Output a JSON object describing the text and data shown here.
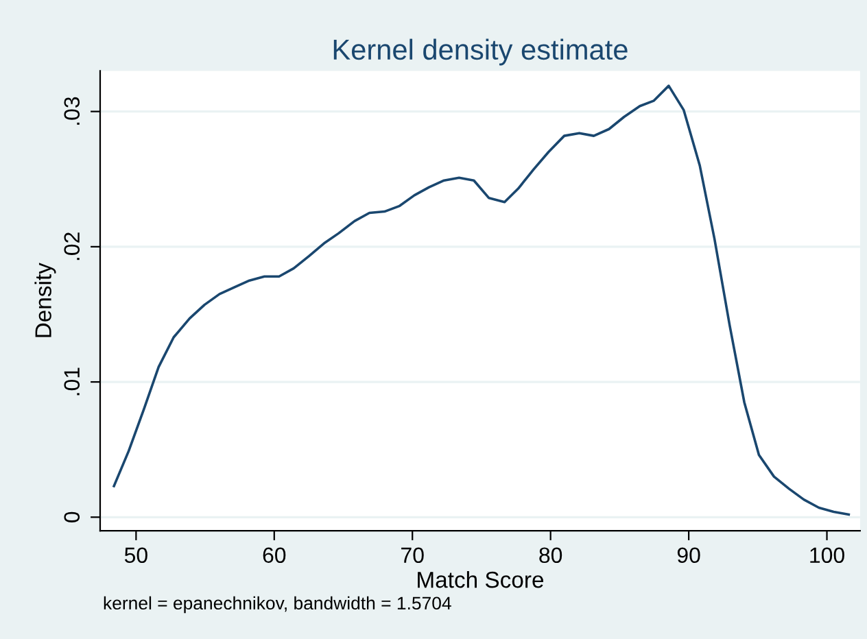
{
  "chart_data": {
    "type": "line",
    "title": "Kernel density estimate",
    "xlabel": "Match Score",
    "ylabel": "Density",
    "annotations": [
      "kernel = epanechnikov, bandwidth = 1.5704"
    ],
    "xlim": [
      47.4,
      102.4
    ],
    "ylim": [
      -0.001,
      0.033
    ],
    "xticks": [
      50,
      60,
      70,
      80,
      90,
      100
    ],
    "yticks": [
      {
        "value": 0,
        "label": "0"
      },
      {
        "value": 0.01,
        "label": ".01"
      },
      {
        "value": 0.02,
        "label": ".02"
      },
      {
        "value": 0.03,
        "label": ".03"
      }
    ],
    "grid": "y",
    "marker": "none",
    "line_style": "solid",
    "series": [
      {
        "color": "#1a476f",
        "x": [
          48.4,
          49.47,
          50.57,
          51.63,
          52.72,
          53.88,
          54.95,
          56.04,
          57.1,
          58.2,
          59.29,
          60.35,
          61.41,
          62.51,
          63.67,
          64.67,
          65.82,
          66.89,
          67.98,
          69.04,
          70.14,
          71.2,
          72.29,
          73.38,
          74.45,
          75.54,
          76.67,
          77.66,
          78.76,
          79.85,
          80.99,
          82.08,
          83.13,
          84.23,
          85.32,
          86.46,
          87.48,
          88.55,
          89.64,
          90.8,
          91.86,
          92.96,
          94.02,
          95.08,
          96.17,
          97.26,
          98.33,
          99.42,
          100.49,
          101.58
        ],
        "values": [
          0.0023,
          0.0049,
          0.008,
          0.0111,
          0.0133,
          0.0147,
          0.0157,
          0.0165,
          0.017,
          0.0175,
          0.0178,
          0.0178,
          0.0184,
          0.0193,
          0.0203,
          0.021,
          0.0219,
          0.0225,
          0.0226,
          0.023,
          0.0238,
          0.0244,
          0.0249,
          0.0251,
          0.0249,
          0.0236,
          0.0233,
          0.0243,
          0.0257,
          0.027,
          0.0282,
          0.0284,
          0.0282,
          0.0287,
          0.0296,
          0.0304,
          0.0308,
          0.0319,
          0.0301,
          0.026,
          0.0206,
          0.0142,
          0.0085,
          0.0046,
          0.003,
          0.0021,
          0.0013,
          0.0007,
          0.0004,
          0.0002
        ]
      }
    ]
  }
}
